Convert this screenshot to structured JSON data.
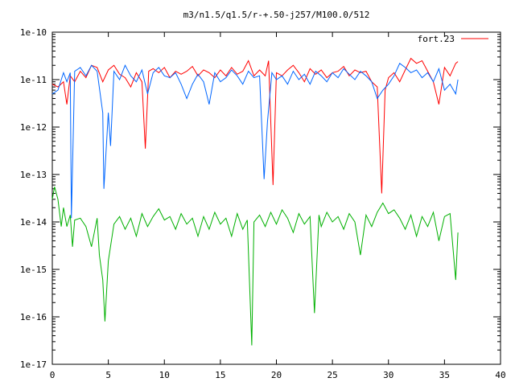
{
  "chart_data": {
    "type": "line",
    "title": "m3/n1.5/q1.5/r-+.50-j257/M100.0/512",
    "xlabel": "",
    "ylabel": "",
    "xlim": [
      0,
      40
    ],
    "ylim": [
      1e-17,
      1e-10
    ],
    "yscale": "log",
    "grid": false,
    "legend_position": "top-right",
    "x_ticks": [
      0,
      5,
      10,
      15,
      20,
      25,
      30,
      35,
      40
    ],
    "x_tick_labels": [
      "0",
      "5",
      "10",
      "15",
      "20",
      "25",
      "30",
      "35",
      "40"
    ],
    "y_ticks": [
      1e-17,
      1e-16,
      1e-15,
      1e-14,
      1e-13,
      1e-12,
      1e-11,
      1e-10
    ],
    "y_tick_labels": [
      "1e-17",
      "1e-16",
      "1e-15",
      "1e-14",
      "1e-13",
      "1e-12",
      "1e-11",
      "1e-10"
    ],
    "series": [
      {
        "name": "fort.23",
        "color": "#ff0000",
        "x": [
          0,
          0.5,
          1,
          1.3,
          1.6,
          2,
          2.5,
          3,
          3.5,
          4,
          4.5,
          5,
          5.5,
          6,
          6.5,
          7,
          7.5,
          8,
          8.3,
          8.6,
          9,
          9.5,
          10,
          10.5,
          11,
          11.5,
          12,
          12.5,
          13,
          13.5,
          14,
          14.5,
          15,
          15.5,
          16,
          16.5,
          17,
          17.5,
          18,
          18.5,
          19,
          19.3,
          19.7,
          20,
          20.5,
          21,
          21.5,
          22,
          22.5,
          23,
          23.5,
          24,
          24.5,
          25,
          25.5,
          26,
          26.5,
          27,
          27.5,
          28,
          28.5,
          29,
          29.4,
          29.7,
          30,
          30.5,
          31,
          31.5,
          32,
          32.5,
          33,
          33.5,
          34,
          34.5,
          35,
          35.5,
          36,
          36.2
        ],
        "values": [
          8e-12,
          7e-12,
          9e-12,
          3e-12,
          1.2e-11,
          9e-12,
          1.5e-11,
          1.1e-11,
          2e-11,
          1.8e-11,
          9e-12,
          1.6e-11,
          2e-11,
          1.3e-11,
          1.1e-11,
          7e-12,
          1.4e-11,
          9e-12,
          3.5e-13,
          1.5e-11,
          1.7e-11,
          1.4e-11,
          1.8e-11,
          1.1e-11,
          1.5e-11,
          1.3e-11,
          1.5e-11,
          1.9e-11,
          1.2e-11,
          1.6e-11,
          1.4e-11,
          1.1e-11,
          1.6e-11,
          1.2e-11,
          1.8e-11,
          1.3e-11,
          1.5e-11,
          2.5e-11,
          1.2e-11,
          1.6e-11,
          1.2e-11,
          2.5e-11,
          6e-14,
          1.4e-11,
          1.2e-11,
          1.6e-11,
          2e-11,
          1.4e-11,
          9e-12,
          1.7e-11,
          1.3e-11,
          1.6e-11,
          1.1e-11,
          1.4e-11,
          1.5e-11,
          1.9e-11,
          1.2e-11,
          1.6e-11,
          1.4e-11,
          1.5e-11,
          9e-12,
          7e-12,
          4e-14,
          6e-12,
          1.1e-11,
          1.4e-11,
          9e-12,
          1.6e-11,
          2.8e-11,
          2.2e-11,
          2.5e-11,
          1.5e-11,
          9e-12,
          3e-12,
          1.8e-11,
          1.2e-11,
          2.2e-11,
          2.4e-11
        ]
      },
      {
        "name": "",
        "color": "#0066ff",
        "x": [
          0,
          0.5,
          1,
          1.3,
          1.6,
          1.7,
          2,
          2.5,
          3,
          3.5,
          4,
          4.5,
          4.6,
          5,
          5.2,
          5.5,
          6,
          6.5,
          7,
          7.5,
          8,
          8.5,
          9,
          9.5,
          10,
          10.5,
          11,
          11.5,
          12,
          12.5,
          13,
          13.5,
          14,
          14.5,
          15,
          15.5,
          16,
          16.5,
          17,
          17.5,
          18,
          18.5,
          18.9,
          19.2,
          19.6,
          20,
          20.5,
          21,
          21.5,
          22,
          22.5,
          23,
          23.5,
          24,
          24.5,
          25,
          25.5,
          26,
          26.5,
          27,
          27.5,
          28,
          28.5,
          29,
          29.5,
          30,
          30.5,
          31,
          31.5,
          32,
          32.5,
          33,
          33.5,
          34,
          34.5,
          35,
          35.5,
          36,
          36.2
        ],
        "values": [
          5e-12,
          6e-12,
          1.4e-11,
          9e-12,
          1.4e-11,
          1.2e-14,
          1.5e-11,
          1.8e-11,
          1.2e-11,
          2e-11,
          1.5e-11,
          2e-12,
          5e-14,
          2e-12,
          4e-13,
          1.5e-11,
          1e-11,
          2e-11,
          1.2e-11,
          9e-12,
          1.6e-11,
          5e-12,
          1.4e-11,
          1.8e-11,
          1.2e-11,
          1.1e-11,
          1.4e-11,
          8e-12,
          4e-12,
          8e-12,
          1.3e-11,
          9e-12,
          3e-12,
          1.4e-11,
          9e-12,
          1.1e-11,
          1.6e-11,
          1.2e-11,
          8e-12,
          1.5e-11,
          1.1e-11,
          1.2e-11,
          8e-14,
          1.3e-12,
          1.4e-11,
          1e-11,
          1.2e-11,
          8e-12,
          1.5e-11,
          1e-11,
          1.3e-11,
          8e-12,
          1.5e-11,
          1.2e-11,
          9e-12,
          1.4e-11,
          1.1e-11,
          1.7e-11,
          1.3e-11,
          1e-11,
          1.5e-11,
          1.2e-11,
          9e-12,
          4e-12,
          6e-12,
          8e-12,
          1.2e-11,
          2.2e-11,
          1.8e-11,
          1.4e-11,
          1.6e-11,
          1.1e-11,
          1.4e-11,
          9e-12,
          1.7e-11,
          6e-12,
          8e-12,
          5e-12,
          1e-11
        ]
      },
      {
        "name": "",
        "color": "#00b000",
        "x": [
          0,
          0.2,
          0.5,
          0.8,
          1,
          1.3,
          1.6,
          1.8,
          2,
          2.5,
          3,
          3.5,
          4,
          4.2,
          4.5,
          4.7,
          5,
          5.5,
          6,
          6.5,
          7,
          7.5,
          8,
          8.5,
          9,
          9.5,
          10,
          10.5,
          11,
          11.5,
          12,
          12.5,
          13,
          13.5,
          14,
          14.5,
          15,
          15.5,
          16,
          16.5,
          17,
          17.4,
          17.8,
          18,
          18.5,
          19,
          19.5,
          20,
          20.5,
          21,
          21.5,
          22,
          22.5,
          23,
          23.4,
          23.8,
          24,
          24.5,
          25,
          25.5,
          26,
          26.5,
          27,
          27.5,
          28,
          28.5,
          29,
          29.5,
          30,
          30.5,
          31,
          31.5,
          32,
          32.5,
          33,
          33.5,
          34,
          34.5,
          35,
          35.5,
          36,
          36.2
        ],
        "values": [
          3e-14,
          5.5e-14,
          3e-14,
          8e-15,
          2e-14,
          8e-15,
          1.4e-14,
          3e-15,
          1.1e-14,
          1.2e-14,
          8e-15,
          3e-15,
          1.2e-14,
          2e-15,
          6e-16,
          8e-17,
          1.5e-15,
          9e-15,
          1.3e-14,
          7e-15,
          1.2e-14,
          5e-15,
          1.5e-14,
          8e-15,
          1.3e-14,
          1.9e-14,
          1.1e-14,
          1.3e-14,
          7e-15,
          1.5e-14,
          9e-15,
          1.2e-14,
          5e-15,
          1.3e-14,
          7e-15,
          1.6e-14,
          9e-15,
          1.2e-14,
          5e-15,
          1.5e-14,
          7e-15,
          1.1e-14,
          2.5e-17,
          1e-14,
          1.4e-14,
          8e-15,
          1.6e-14,
          9e-15,
          1.8e-14,
          1.2e-14,
          6e-15,
          1.5e-14,
          9e-15,
          1.3e-14,
          1.2e-16,
          1.4e-14,
          8e-15,
          1.6e-14,
          1e-14,
          1.3e-14,
          7e-15,
          1.5e-14,
          1e-14,
          2e-15,
          1.4e-14,
          8e-15,
          1.6e-14,
          2.5e-14,
          1.5e-14,
          1.8e-14,
          1.2e-14,
          7e-15,
          1.4e-14,
          5e-15,
          1.3e-14,
          8e-15,
          1.6e-14,
          4e-15,
          1.3e-14,
          1.5e-14,
          6e-16,
          6e-15
        ]
      }
    ]
  }
}
